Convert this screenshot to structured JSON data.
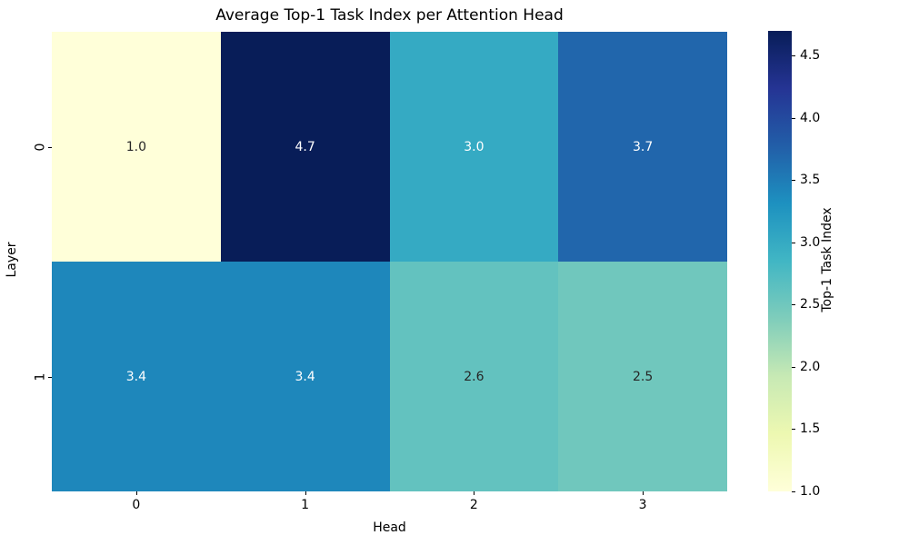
{
  "title": "Average Top-1 Task Index per Attention Head",
  "chart_data": {
    "type": "heatmap",
    "title": "Average Top-1 Task Index per Attention Head",
    "xlabel": "Head",
    "ylabel": "Layer",
    "x_ticks": [
      "0",
      "1",
      "2",
      "3"
    ],
    "y_ticks": [
      "0",
      "1"
    ],
    "rows": [
      [
        1.0,
        4.7,
        3.0,
        3.7
      ],
      [
        3.4,
        3.4,
        2.6,
        2.5
      ]
    ],
    "cell_labels": [
      [
        "1.0",
        "4.7",
        "3.0",
        "3.7"
      ],
      [
        "3.4",
        "3.4",
        "2.6",
        "2.5"
      ]
    ],
    "vmin": 1.0,
    "vmax": 4.7,
    "grid": false,
    "legend_position": "colorbar-right",
    "colorbar": {
      "label": "Top-1 Task Index",
      "ticks": [
        "4.5",
        "4.0",
        "3.5",
        "3.0",
        "2.5",
        "2.0",
        "1.5",
        "1.0"
      ],
      "tick_values": [
        4.5,
        4.0,
        3.5,
        3.0,
        2.5,
        2.0,
        1.5,
        1.0
      ]
    },
    "colormap": {
      "name": "YlGnBu",
      "anchors": [
        "#ffffd9",
        "#edf8b1",
        "#c7e9b4",
        "#7fcdbb",
        "#41b6c4",
        "#1d91c0",
        "#225ea8",
        "#253494",
        "#081d58"
      ]
    },
    "annotation_text_colors": {
      "light": "#262626",
      "dark": "#ffffff"
    },
    "background_color": "#ffffff"
  }
}
